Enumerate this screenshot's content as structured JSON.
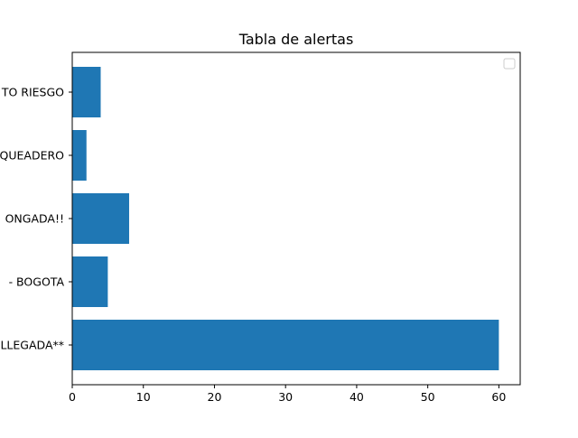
{
  "chart_data": {
    "type": "bar",
    "orientation": "horizontal",
    "title": "Tabla de alertas",
    "xlabel": "",
    "ylabel": "",
    "categories": [
      "LLEGADA**",
      "- BOGOTA",
      "ONGADA!!",
      "QUEADERO",
      "TO RIESGO"
    ],
    "values": [
      60,
      5,
      8,
      2,
      4
    ],
    "xlim": [
      0,
      63
    ],
    "xticks": [
      0,
      10,
      20,
      30,
      40,
      50,
      60
    ],
    "grid": false,
    "legend": "top-right",
    "legend_entries": [],
    "bar_color": "#1f77b4"
  }
}
